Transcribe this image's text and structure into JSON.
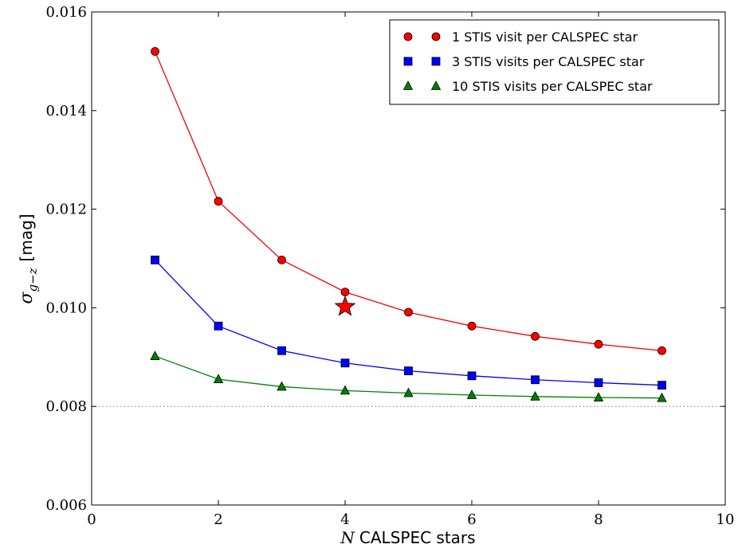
{
  "chart_data": {
    "type": "line",
    "x": [
      1,
      2,
      3,
      4,
      5,
      6,
      7,
      8,
      9
    ],
    "xlim": [
      0,
      10
    ],
    "ylim": [
      0.006,
      0.016
    ],
    "xticks": [
      "0",
      "2",
      "4",
      "6",
      "8",
      "10"
    ],
    "yticks": [
      "0.006",
      "0.008",
      "0.010",
      "0.012",
      "0.014",
      "0.016"
    ],
    "xlabel": {
      "italic": "N",
      "text": "CALSPEC stars"
    },
    "ylabel": {
      "symbol": "σ",
      "subscript": "g−z",
      "unit": "[mag]"
    },
    "legend_position": "top-right",
    "series": [
      {
        "name": "1 STIS visit per CALSPEC star",
        "marker": "circle",
        "color": "#ff0000",
        "values": [
          0.0152,
          0.01216,
          0.01097,
          0.01032,
          0.00991,
          0.00963,
          0.00942,
          0.00926,
          0.00913
        ]
      },
      {
        "name": "3 STIS visits per CALSPEC star",
        "marker": "square",
        "color": "#0000ff",
        "values": [
          0.01097,
          0.00963,
          0.00913,
          0.00888,
          0.00872,
          0.00862,
          0.00854,
          0.00848,
          0.00843
        ]
      },
      {
        "name": "10 STIS visits per CALSPEC star",
        "marker": "triangle",
        "color": "#008000",
        "values": [
          0.00902,
          0.00855,
          0.0084,
          0.00832,
          0.00827,
          0.00823,
          0.0082,
          0.00818,
          0.00817
        ]
      }
    ],
    "reference_line": {
      "y": 0.008,
      "style": "dotted",
      "color": "#808080"
    },
    "highlight": {
      "x": 4,
      "y": 0.01002,
      "marker": "star",
      "color": "#ff0000"
    }
  }
}
